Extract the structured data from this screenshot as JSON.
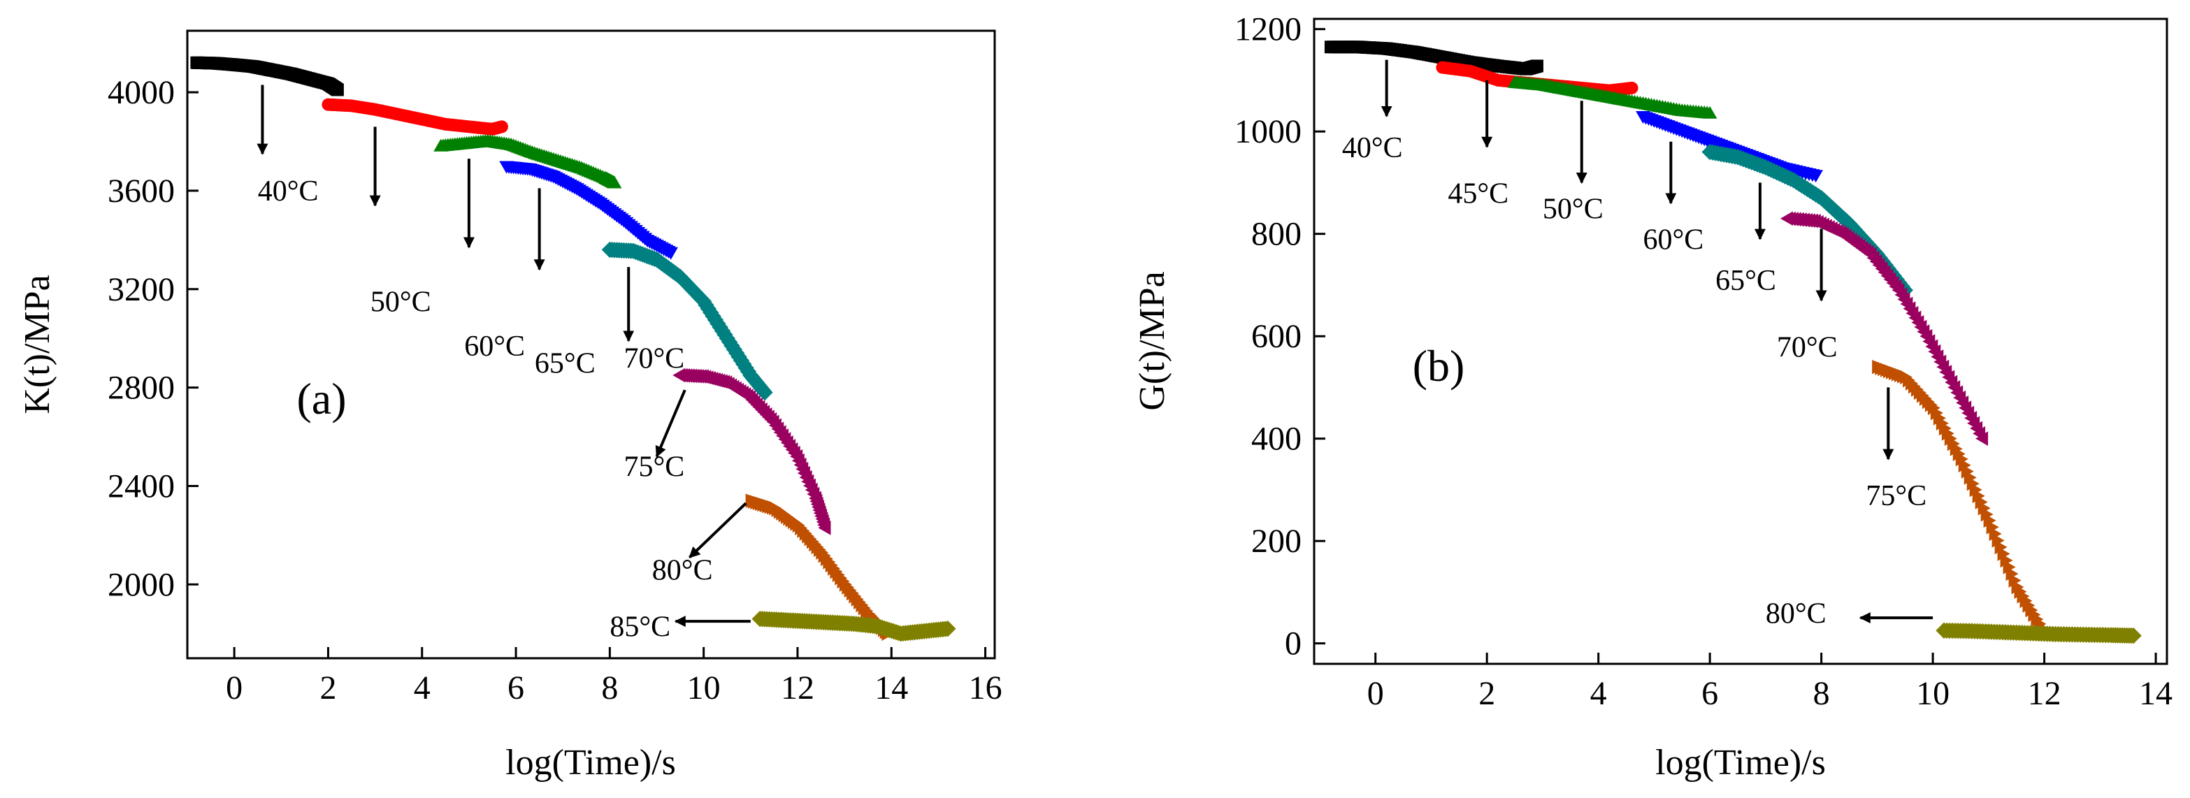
{
  "chart_data": [
    {
      "id": "a",
      "type": "scatter",
      "panel_label": "(a)",
      "xlabel": "log(Time)/s",
      "ylabel": "K(t)/MPa",
      "xlim": [
        -1,
        16.2
      ],
      "ylim": [
        1700,
        4250
      ],
      "xticks": [
        0,
        2,
        4,
        6,
        8,
        10,
        12,
        14,
        16
      ],
      "yticks": [
        2000,
        2400,
        2800,
        3200,
        3600,
        4000
      ],
      "series": [
        {
          "name": "40°C",
          "marker": "square",
          "color": "#000000",
          "x": [
            -0.8,
            -0.4,
            0,
            0.4,
            0.8,
            1.2,
            1.6,
            2.0,
            2.2
          ],
          "y": [
            4120,
            4118,
            4112,
            4105,
            4090,
            4075,
            4055,
            4035,
            4010
          ]
        },
        {
          "name": "50°C",
          "marker": "circle",
          "color": "#ff0000",
          "x": [
            2.0,
            2.5,
            3.0,
            3.5,
            4.0,
            4.5,
            5.0,
            5.5,
            5.7
          ],
          "y": [
            3950,
            3945,
            3930,
            3910,
            3890,
            3870,
            3860,
            3850,
            3860
          ]
        },
        {
          "name": "60°C",
          "marker": "triangle-up",
          "color": "#008000",
          "x": [
            4.4,
            4.9,
            5.4,
            5.9,
            6.4,
            6.9,
            7.4,
            7.9,
            8.1
          ],
          "y": [
            3780,
            3790,
            3800,
            3785,
            3750,
            3720,
            3690,
            3650,
            3630
          ]
        },
        {
          "name": "65°C",
          "marker": "triangle-down",
          "color": "#0000ff",
          "x": [
            5.8,
            6.3,
            6.8,
            7.3,
            7.8,
            8.3,
            8.8,
            9.3
          ],
          "y": [
            3700,
            3690,
            3660,
            3610,
            3550,
            3480,
            3400,
            3350
          ]
        },
        {
          "name": "70°C",
          "marker": "diamond",
          "color": "#008080",
          "x": [
            8.0,
            8.5,
            9.0,
            9.5,
            10.0,
            10.5,
            11.0,
            11.3
          ],
          "y": [
            3360,
            3355,
            3320,
            3250,
            3150,
            3000,
            2850,
            2780
          ]
        },
        {
          "name": "75°C",
          "marker": "triangle-left",
          "color": "#9a0060",
          "x": [
            9.5,
            10.0,
            10.5,
            11.0,
            11.5,
            12.0,
            12.4,
            12.6
          ],
          "y": [
            2850,
            2845,
            2820,
            2760,
            2660,
            2520,
            2350,
            2230
          ]
        },
        {
          "name": "80°C",
          "marker": "triangle-right",
          "color": "#c05000",
          "x": [
            11.0,
            11.5,
            12.0,
            12.5,
            13.0,
            13.5,
            13.9
          ],
          "y": [
            2340,
            2310,
            2240,
            2130,
            2000,
            1880,
            1800
          ]
        },
        {
          "name": "85°C",
          "marker": "diamond",
          "color": "#808000",
          "x": [
            11.2,
            11.7,
            12.2,
            12.7,
            13.2,
            13.7,
            14.2,
            14.7,
            15.2
          ],
          "y": [
            1860,
            1855,
            1850,
            1845,
            1840,
            1830,
            1800,
            1810,
            1820
          ]
        }
      ],
      "annotations": [
        {
          "text": "40°C",
          "label_xy": [
            0.5,
            3560
          ],
          "arrow_from": [
            0.6,
            4030
          ],
          "arrow_to": [
            0.6,
            3750
          ]
        },
        {
          "text": "50°C",
          "label_xy": [
            2.9,
            3110
          ],
          "arrow_from": [
            3.0,
            3860
          ],
          "arrow_to": [
            3.0,
            3540
          ]
        },
        {
          "text": "60°C",
          "label_xy": [
            4.9,
            2930
          ],
          "arrow_from": [
            5.0,
            3730
          ],
          "arrow_to": [
            5.0,
            3370
          ]
        },
        {
          "text": "65°C",
          "label_xy": [
            6.4,
            2860
          ],
          "arrow_from": [
            6.5,
            3610
          ],
          "arrow_to": [
            6.5,
            3280
          ]
        },
        {
          "text": "70°C",
          "label_xy": [
            8.3,
            2880
          ],
          "arrow_from": [
            8.4,
            3290
          ],
          "arrow_to": [
            8.4,
            2990
          ]
        },
        {
          "text": "75°C",
          "label_xy": [
            8.3,
            2440
          ],
          "arrow_from": [
            9.6,
            2790
          ],
          "arrow_to": [
            9.0,
            2520
          ]
        },
        {
          "text": "80°C",
          "label_xy": [
            8.9,
            2020
          ],
          "arrow_from": [
            10.9,
            2330
          ],
          "arrow_to": [
            9.7,
            2110
          ]
        },
        {
          "text": "85°C",
          "label_xy": [
            8.0,
            1790
          ],
          "arrow_from": [
            11.0,
            1850
          ],
          "arrow_to": [
            9.4,
            1850
          ]
        }
      ]
    },
    {
      "id": "b",
      "type": "scatter",
      "panel_label": "(b)",
      "xlabel": "log(Time)/s",
      "ylabel": "G(t)/MPa",
      "xlim": [
        -1.1,
        14.2
      ],
      "ylim": [
        -40,
        1220
      ],
      "xticks": [
        0,
        2,
        4,
        6,
        8,
        10,
        12,
        14
      ],
      "yticks": [
        0,
        200,
        400,
        600,
        800,
        1000,
        1200
      ],
      "series": [
        {
          "name": "40°C",
          "marker": "square",
          "color": "#000000",
          "x": [
            -0.8,
            -0.3,
            0.2,
            0.7,
            1.2,
            1.7,
            2.2,
            2.7,
            2.9
          ],
          "y": [
            1165,
            1165,
            1162,
            1155,
            1145,
            1135,
            1128,
            1122,
            1128
          ]
        },
        {
          "name": "45°C",
          "marker": "circle",
          "color": "#ff0000",
          "x": [
            1.2,
            1.7,
            2.2,
            2.7,
            3.2,
            3.7,
            4.2,
            4.6
          ],
          "y": [
            1125,
            1118,
            1100,
            1095,
            1090,
            1085,
            1080,
            1085
          ]
        },
        {
          "name": "50°C",
          "marker": "triangle-up",
          "color": "#008000",
          "x": [
            2.5,
            3.0,
            3.5,
            4.0,
            4.5,
            5.0,
            5.5,
            6.0
          ],
          "y": [
            1095,
            1090,
            1080,
            1070,
            1060,
            1050,
            1040,
            1035
          ]
        },
        {
          "name": "60°C",
          "marker": "triangle-down",
          "color": "#0000ff",
          "x": [
            4.8,
            5.3,
            5.8,
            6.3,
            6.8,
            7.3,
            7.9
          ],
          "y": [
            1030,
            1010,
            990,
            970,
            950,
            930,
            915
          ]
        },
        {
          "name": "65°C",
          "marker": "diamond",
          "color": "#008080",
          "x": [
            6.0,
            6.5,
            7.0,
            7.5,
            8.0,
            8.5,
            9.0,
            9.5
          ],
          "y": [
            960,
            950,
            930,
            905,
            870,
            820,
            760,
            690
          ]
        },
        {
          "name": "70°C",
          "marker": "triangle-left",
          "color": "#9a0060",
          "x": [
            7.4,
            7.9,
            8.4,
            8.9,
            9.4,
            9.9,
            10.4,
            10.9
          ],
          "y": [
            830,
            825,
            800,
            760,
            690,
            600,
            500,
            400
          ]
        },
        {
          "name": "75°C",
          "marker": "triangle-right",
          "color": "#c05000",
          "x": [
            9.0,
            9.5,
            10.0,
            10.5,
            11.0,
            11.5,
            12.0
          ],
          "y": [
            540,
            520,
            460,
            360,
            240,
            110,
            20
          ]
        },
        {
          "name": "80°C",
          "marker": "diamond",
          "color": "#808000",
          "x": [
            10.2,
            10.7,
            11.2,
            11.7,
            12.2,
            12.7,
            13.2,
            13.6
          ],
          "y": [
            25,
            24,
            22,
            20,
            18,
            17,
            16,
            15
          ]
        }
      ],
      "annotations": [
        {
          "text": "40°C",
          "label_xy": [
            -0.6,
            950
          ],
          "arrow_from": [
            0.2,
            1140
          ],
          "arrow_to": [
            0.2,
            1030
          ]
        },
        {
          "text": "45°C",
          "label_xy": [
            1.3,
            860
          ],
          "arrow_from": [
            2.0,
            1100
          ],
          "arrow_to": [
            2.0,
            970
          ]
        },
        {
          "text": "50°C",
          "label_xy": [
            3.0,
            830
          ],
          "arrow_from": [
            3.7,
            1060
          ],
          "arrow_to": [
            3.7,
            900
          ]
        },
        {
          "text": "60°C",
          "label_xy": [
            4.8,
            770
          ],
          "arrow_from": [
            5.3,
            980
          ],
          "arrow_to": [
            5.3,
            860
          ]
        },
        {
          "text": "65°C",
          "label_xy": [
            6.1,
            690
          ],
          "arrow_from": [
            6.9,
            900
          ],
          "arrow_to": [
            6.9,
            790
          ]
        },
        {
          "text": "70°C",
          "label_xy": [
            7.2,
            560
          ],
          "arrow_from": [
            8.0,
            810
          ],
          "arrow_to": [
            8.0,
            670
          ]
        },
        {
          "text": "75°C",
          "label_xy": [
            8.8,
            270
          ],
          "arrow_from": [
            9.2,
            500
          ],
          "arrow_to": [
            9.2,
            360
          ]
        },
        {
          "text": "80°C",
          "label_xy": [
            7.0,
            40
          ],
          "arrow_from": [
            10.0,
            50
          ],
          "arrow_to": [
            8.7,
            50
          ]
        }
      ]
    }
  ]
}
